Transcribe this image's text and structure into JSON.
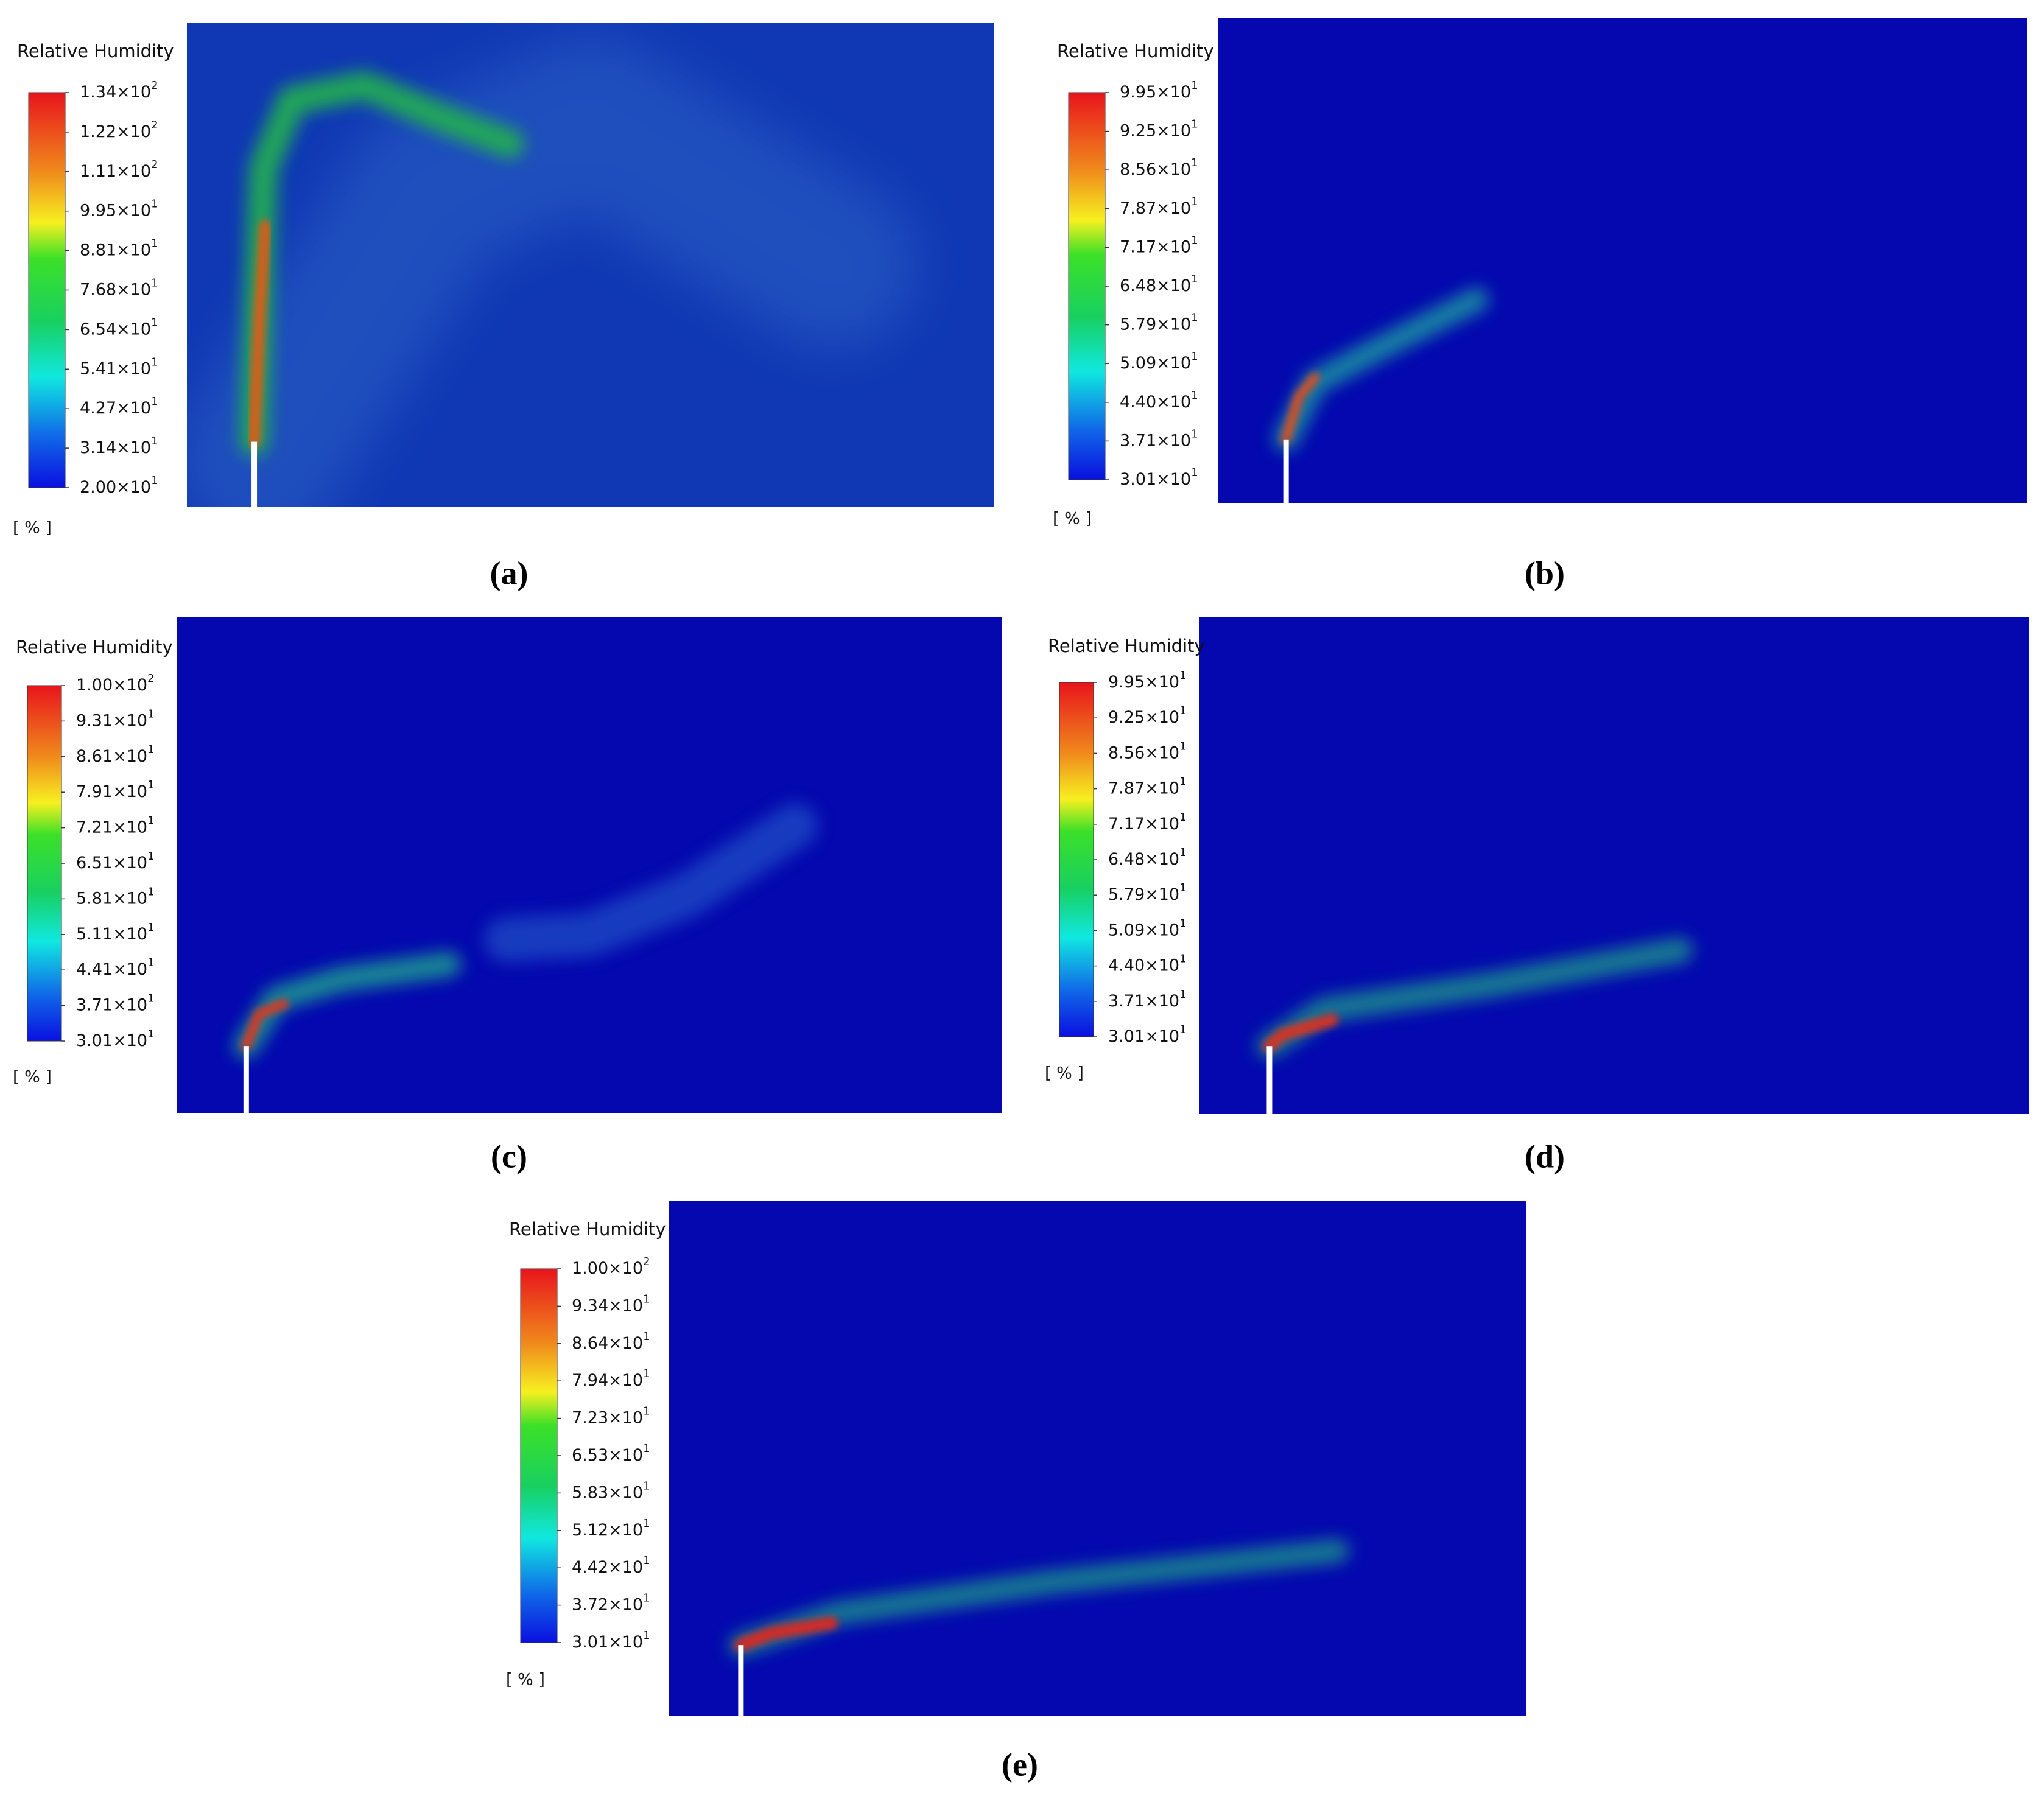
{
  "panels": [
    {
      "caption": "(a)",
      "legend_title": "Relative Humidity",
      "unit": "[ % ]",
      "ticks": [
        {
          "mantissa": "1.34×10",
          "exp": "2"
        },
        {
          "mantissa": "1.22×10",
          "exp": "2"
        },
        {
          "mantissa": "1.11×10",
          "exp": "2"
        },
        {
          "mantissa": "9.95×10",
          "exp": "1"
        },
        {
          "mantissa": "8.81×10",
          "exp": "1"
        },
        {
          "mantissa": "7.68×10",
          "exp": "1"
        },
        {
          "mantissa": "6.54×10",
          "exp": "1"
        },
        {
          "mantissa": "5.41×10",
          "exp": "1"
        },
        {
          "mantissa": "4.27×10",
          "exp": "1"
        },
        {
          "mantissa": "3.14×10",
          "exp": "1"
        },
        {
          "mantissa": "2.00×10",
          "exp": "1"
        }
      ]
    },
    {
      "caption": "(b)",
      "legend_title": "Relative Humidity",
      "unit": "[ % ]",
      "ticks": [
        {
          "mantissa": "9.95×10",
          "exp": "1"
        },
        {
          "mantissa": "9.25×10",
          "exp": "1"
        },
        {
          "mantissa": "8.56×10",
          "exp": "1"
        },
        {
          "mantissa": "7.87×10",
          "exp": "1"
        },
        {
          "mantissa": "7.17×10",
          "exp": "1"
        },
        {
          "mantissa": "6.48×10",
          "exp": "1"
        },
        {
          "mantissa": "5.79×10",
          "exp": "1"
        },
        {
          "mantissa": "5.09×10",
          "exp": "1"
        },
        {
          "mantissa": "4.40×10",
          "exp": "1"
        },
        {
          "mantissa": "3.71×10",
          "exp": "1"
        },
        {
          "mantissa": "3.01×10",
          "exp": "1"
        }
      ]
    },
    {
      "caption": "(c)",
      "legend_title": "Relative Humidity",
      "unit": "[ % ]",
      "ticks": [
        {
          "mantissa": "1.00×10",
          "exp": "2"
        },
        {
          "mantissa": "9.31×10",
          "exp": "1"
        },
        {
          "mantissa": "8.61×10",
          "exp": "1"
        },
        {
          "mantissa": "7.91×10",
          "exp": "1"
        },
        {
          "mantissa": "7.21×10",
          "exp": "1"
        },
        {
          "mantissa": "6.51×10",
          "exp": "1"
        },
        {
          "mantissa": "5.81×10",
          "exp": "1"
        },
        {
          "mantissa": "5.11×10",
          "exp": "1"
        },
        {
          "mantissa": "4.41×10",
          "exp": "1"
        },
        {
          "mantissa": "3.71×10",
          "exp": "1"
        },
        {
          "mantissa": "3.01×10",
          "exp": "1"
        }
      ]
    },
    {
      "caption": "(d)",
      "legend_title": "Relative Humidity",
      "unit": "[ % ]",
      "ticks": [
        {
          "mantissa": "9.95×10",
          "exp": "1"
        },
        {
          "mantissa": "9.25×10",
          "exp": "1"
        },
        {
          "mantissa": "8.56×10",
          "exp": "1"
        },
        {
          "mantissa": "7.87×10",
          "exp": "1"
        },
        {
          "mantissa": "7.17×10",
          "exp": "1"
        },
        {
          "mantissa": "6.48×10",
          "exp": "1"
        },
        {
          "mantissa": "5.79×10",
          "exp": "1"
        },
        {
          "mantissa": "5.09×10",
          "exp": "1"
        },
        {
          "mantissa": "4.40×10",
          "exp": "1"
        },
        {
          "mantissa": "3.71×10",
          "exp": "1"
        },
        {
          "mantissa": "3.01×10",
          "exp": "1"
        }
      ]
    },
    {
      "caption": "(e)",
      "legend_title": "Relative Humidity",
      "unit": "[ % ]",
      "ticks": [
        {
          "mantissa": "1.00×10",
          "exp": "2"
        },
        {
          "mantissa": "9.34×10",
          "exp": "1"
        },
        {
          "mantissa": "8.64×10",
          "exp": "1"
        },
        {
          "mantissa": "7.94×10",
          "exp": "1"
        },
        {
          "mantissa": "7.23×10",
          "exp": "1"
        },
        {
          "mantissa": "6.53×10",
          "exp": "1"
        },
        {
          "mantissa": "5.83×10",
          "exp": "1"
        },
        {
          "mantissa": "5.12×10",
          "exp": "1"
        },
        {
          "mantissa": "4.42×10",
          "exp": "1"
        },
        {
          "mantissa": "3.72×10",
          "exp": "1"
        },
        {
          "mantissa": "3.01×10",
          "exp": "1"
        }
      ]
    }
  ]
}
